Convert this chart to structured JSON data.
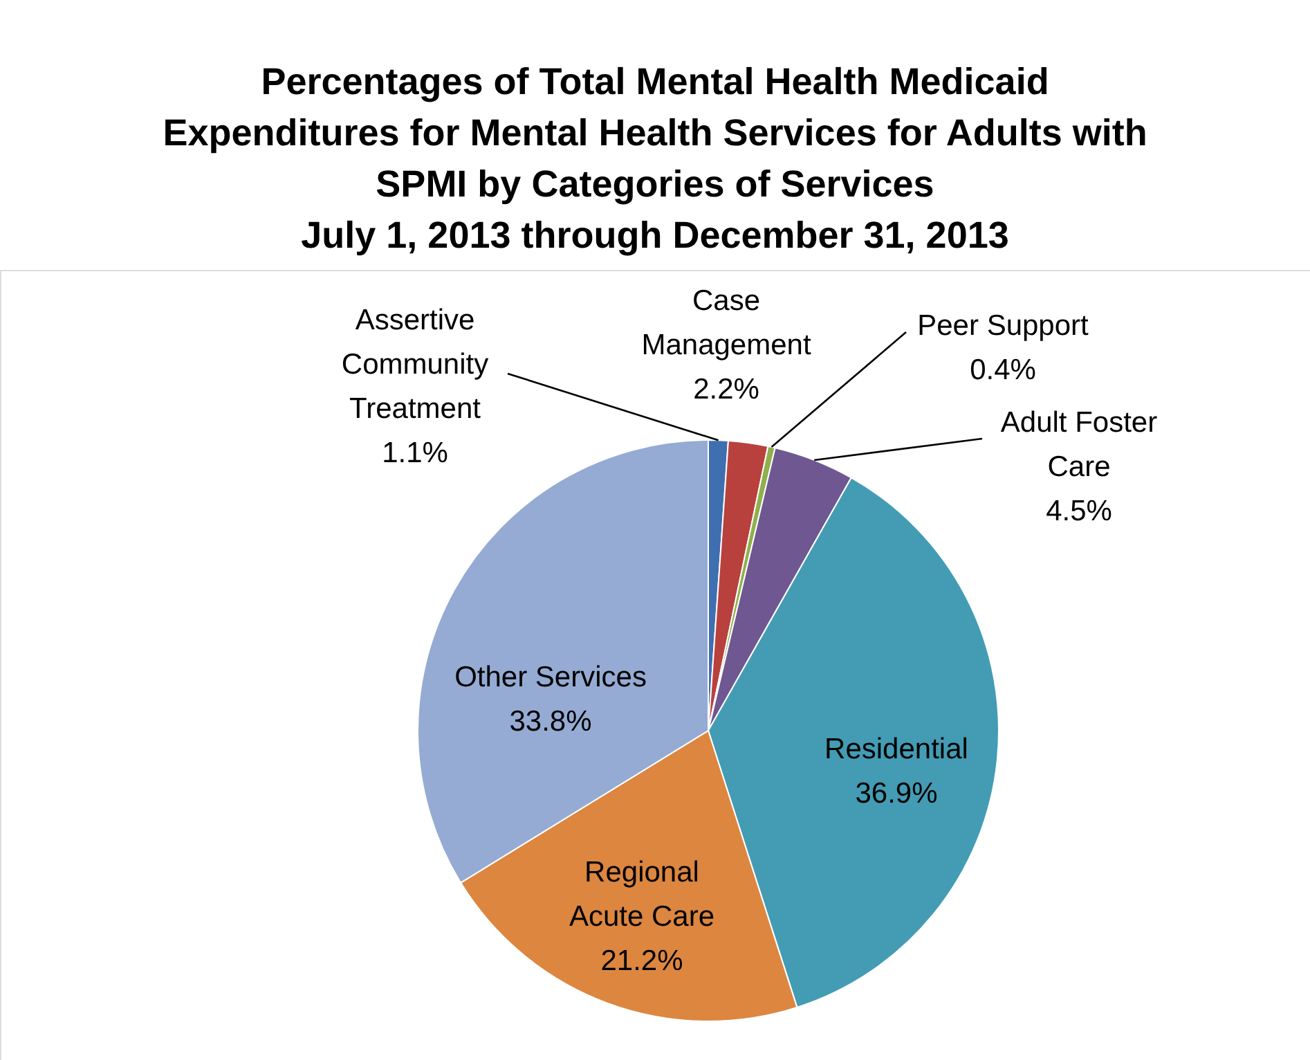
{
  "chart_data": {
    "type": "pie",
    "title": [
      "Percentages of Total Mental Health Medicaid",
      "Expenditures for Mental Health Services for Adults with",
      "SPMI by Categories of Services",
      "July 1, 2013 through December 31, 2013"
    ],
    "categories": [
      "Assertive Community Treatment",
      "Case Management",
      "Peer Support",
      "Adult Foster Care",
      "Residential",
      "Regional Acute Care",
      "Other Services"
    ],
    "values": [
      1.1,
      2.2,
      0.4,
      4.5,
      36.9,
      21.2,
      33.8
    ],
    "colors": [
      "#3f6fb0",
      "#b9413d",
      "#8fb04b",
      "#6f5792",
      "#439cb4",
      "#dd8640",
      "#95abd3"
    ],
    "value_labels": [
      "1.1%",
      "2.2%",
      "0.4%",
      "4.5%",
      "36.9%",
      "21.2%",
      "33.8%"
    ],
    "legend": false
  }
}
